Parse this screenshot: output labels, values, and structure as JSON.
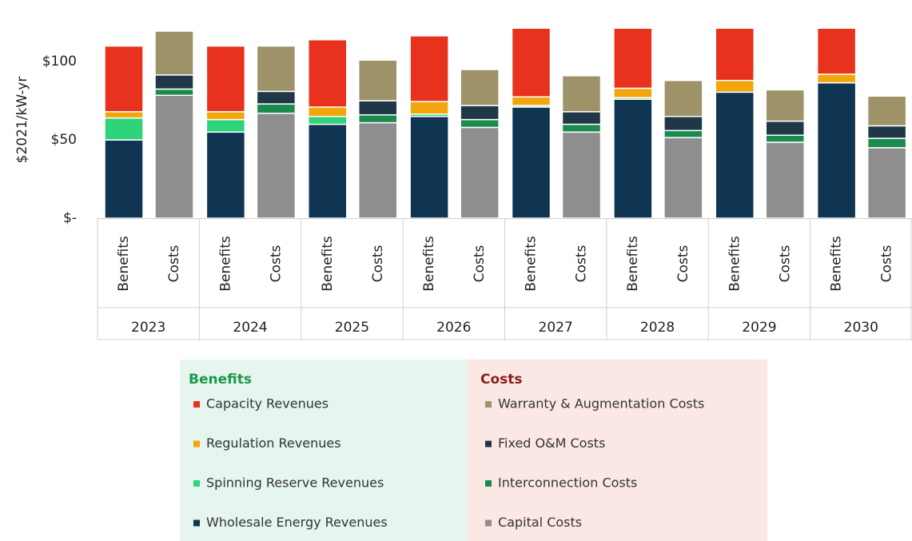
{
  "chart_data": {
    "type": "stacked_bar",
    "y_axis_label": "$2021/kW-yr",
    "ylim": [
      0,
      120
    ],
    "yticks": [
      {
        "value": 0,
        "label": "$-"
      },
      {
        "value": 50,
        "label": "$50"
      },
      {
        "value": 100,
        "label": "$100"
      }
    ],
    "categories": [
      "2023",
      "2024",
      "2025",
      "2026",
      "2027",
      "2028",
      "2029",
      "2030"
    ],
    "bar_labels": [
      "Benefits",
      "Costs"
    ],
    "legend_titles": [
      "Benefits",
      "Costs"
    ],
    "legend_title_colors": [
      "#1a9a4a",
      "#8b1e1e"
    ],
    "benefit_series": [
      {
        "name": "Capacity Revenues",
        "color": "#e8321e",
        "values": [
          42,
          42,
          43,
          42,
          44,
          40,
          35,
          30
        ]
      },
      {
        "name": "Regulation Revenues",
        "color": "#f2a60c",
        "values": [
          4,
          5,
          6,
          8,
          5.5,
          6,
          7.5,
          5.5
        ]
      },
      {
        "name": "Spinning Reserve Revenues",
        "color": "#2fd37a",
        "values": [
          14,
          8,
          5,
          1.5,
          1,
          1,
          0,
          0
        ]
      },
      {
        "name": "Wholesale Energy Revenues",
        "color": "#0f3552",
        "values": [
          50,
          55,
          60,
          65,
          71,
          76,
          80.5,
          86.5
        ]
      }
    ],
    "cost_series": [
      {
        "name": "Warranty & Augmentation Costs",
        "color": "#9d9268",
        "values": [
          28,
          29,
          26,
          23,
          23,
          23,
          20,
          19
        ]
      },
      {
        "name": "Fixed O&M Costs",
        "color": "#1f3747",
        "values": [
          9,
          8,
          9,
          9,
          8,
          9,
          9,
          8
        ]
      },
      {
        "name": "Interconnection Costs",
        "color": "#1b8a4e",
        "values": [
          4,
          6,
          5,
          5,
          5,
          4.5,
          4.5,
          6
        ]
      },
      {
        "name": "Capital Costs",
        "color": "#8e8e8e",
        "values": [
          78.5,
          67,
          61,
          58,
          55,
          51.5,
          48.5,
          45
        ]
      }
    ]
  }
}
